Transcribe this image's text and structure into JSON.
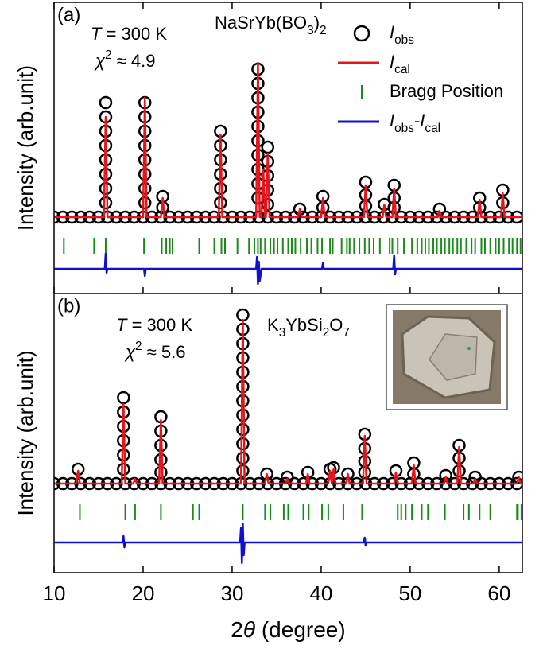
{
  "chart_data": [
    {
      "type": "rietveld",
      "panel_label": "(a)",
      "ylabel": "Intensity (arb.unit)",
      "temperature": [
        {
          "text": "T",
          "style": "italic"
        },
        {
          "text": " = 300 K"
        }
      ],
      "chi2": [
        {
          "text": "χ",
          "style": "italic"
        },
        {
          "text": "2",
          "style": "sup"
        },
        {
          "text": " ≈ 4.9"
        }
      ],
      "compound": [
        {
          "text": "NaSrYb(BO"
        },
        {
          "text": "3",
          "style": "sub"
        },
        {
          "text": ")"
        },
        {
          "text": "2",
          "style": "sub"
        }
      ],
      "xlim": [
        10,
        62.6
      ],
      "ylim": [
        -48,
        135
      ],
      "series": [
        {
          "kind": "circle",
          "color": "#000000",
          "label": [
            {
              "text": "I",
              "style": "italic"
            },
            {
              "text": "obs",
              "style": "sub"
            }
          ],
          "x": [
            10,
            11,
            12,
            13,
            14,
            15,
            16,
            17,
            18,
            19,
            20,
            21,
            22,
            23,
            24,
            25,
            26,
            27,
            28,
            29,
            30,
            31,
            32,
            33,
            34,
            35,
            36,
            37,
            38,
            39,
            40,
            41,
            42,
            43,
            44,
            45,
            46,
            47,
            48,
            49,
            50,
            51,
            52,
            53,
            54,
            55,
            56,
            57,
            58,
            59,
            60,
            61,
            62,
            15.8,
            15.8,
            15.8,
            15.8,
            15.8,
            15.8,
            15.8,
            15.8,
            20.2,
            20.2,
            20.2,
            20.2,
            20.2,
            20.2,
            20.2,
            20.2,
            22.2,
            22.2,
            28.7,
            28.7,
            28.7,
            28.7,
            28.7,
            28.7,
            32.9,
            32.9,
            32.9,
            32.9,
            32.9,
            32.9,
            32.9,
            32.9,
            32.9,
            32.9,
            34.0,
            34.0,
            34.0,
            34.0,
            34.0,
            37.6,
            40.2,
            40.2,
            45.0,
            45.0,
            45.0,
            47.1,
            48.2,
            48.2,
            48.2,
            53.3,
            57.8,
            57.8,
            60.4,
            60.4
          ],
          "values": [
            0,
            0,
            0,
            0,
            0,
            0,
            0,
            0,
            0,
            0,
            0,
            0,
            0,
            0,
            0,
            0,
            0,
            0,
            0,
            0,
            0,
            0,
            0,
            0,
            0,
            0,
            0,
            0,
            0,
            0,
            0,
            0,
            0,
            0,
            0,
            0,
            0,
            0,
            0,
            0,
            0,
            0,
            0,
            0,
            0,
            0,
            0,
            0,
            0,
            0,
            0,
            0,
            0,
            72,
            63,
            54,
            45,
            36,
            27,
            18,
            9,
            72,
            63,
            54,
            45,
            36,
            27,
            18,
            9,
            13,
            6,
            54,
            45,
            36,
            27,
            18,
            9,
            93,
            84,
            75,
            66,
            57,
            48,
            39,
            30,
            21,
            12,
            44,
            35,
            26,
            17,
            8,
            5,
            13,
            6,
            22,
            14,
            7,
            8,
            20,
            12,
            6,
            5,
            12,
            6,
            17,
            9
          ]
        },
        {
          "kind": "line",
          "color": "#e8141b",
          "label": [
            {
              "text": "I",
              "style": "italic"
            },
            {
              "text": "cal",
              "style": "sub"
            }
          ],
          "x": [
            10,
            15.6,
            15.8,
            16.0,
            20.0,
            20.2,
            20.4,
            22.0,
            22.2,
            22.4,
            28.5,
            28.7,
            28.9,
            32.7,
            32.9,
            33.1,
            33.3,
            33.5,
            33.7,
            33.8,
            34.0,
            34.2,
            37.4,
            37.6,
            37.8,
            40.0,
            40.2,
            40.4,
            44.8,
            45.0,
            45.2,
            46.9,
            47.1,
            47.3,
            48.0,
            48.2,
            48.4,
            53.1,
            53.3,
            53.5,
            57.6,
            57.8,
            58.0,
            60.2,
            60.4,
            60.6,
            62.6
          ],
          "values": [
            0,
            0,
            63,
            0,
            0,
            75,
            0,
            0,
            12,
            0,
            0,
            52,
            0,
            0,
            97,
            0,
            0,
            30,
            0,
            0,
            40,
            0,
            0,
            5,
            0,
            0,
            12,
            0,
            0,
            20,
            0,
            0,
            8,
            0,
            0,
            18,
            0,
            0,
            4,
            0,
            0,
            11,
            0,
            0,
            15,
            0,
            0
          ]
        },
        {
          "kind": "tick",
          "color": "#1a8a1a",
          "label": [
            {
              "text": "Bragg Position"
            }
          ],
          "x": [
            11.1,
            14.5,
            15.8,
            20.1,
            22.1,
            22.6,
            23.0,
            23.3,
            26.3,
            28.0,
            28.8,
            29.2,
            30.6,
            31.9,
            32.5,
            32.9,
            33.2,
            33.7,
            34.3,
            34.7,
            35.1,
            35.7,
            36.3,
            36.7,
            37.1,
            37.7,
            38.4,
            38.9,
            39.6,
            40.1,
            41.0,
            41.3,
            42.3,
            42.9,
            43.2,
            43.7,
            44.3,
            44.9,
            45.4,
            45.9,
            46.6,
            47.7,
            48.0,
            48.6,
            49.3,
            50.2,
            50.8,
            51.3,
            51.7,
            52.1,
            52.6,
            53.0,
            53.5,
            53.9,
            54.4,
            54.8,
            55.3,
            55.7,
            56.3,
            56.9,
            57.3,
            58.0,
            58.4,
            59.0,
            59.6,
            60.0,
            60.5,
            61.1,
            61.5,
            62.0,
            62.4
          ]
        },
        {
          "kind": "line",
          "color": "#1010d0",
          "label": [
            {
              "text": "I",
              "style": "italic"
            },
            {
              "text": "obs",
              "style": "sub"
            },
            {
              "text": "-"
            },
            {
              "text": "I",
              "style": "italic"
            },
            {
              "text": "cal",
              "style": "sub"
            }
          ],
          "x": [
            10,
            15.7,
            15.8,
            15.9,
            16.0,
            20.1,
            20.2,
            20.3,
            32.7,
            32.8,
            32.9,
            33.0,
            33.1,
            33.3,
            40.1,
            40.2,
            40.3,
            48.1,
            48.2,
            48.3,
            48.4,
            62.6
          ],
          "values": [
            -32.5,
            -32.5,
            -23,
            -35,
            -32.5,
            -32.5,
            -37,
            -32.5,
            -32.5,
            -25,
            -42,
            -28,
            -40,
            -32.5,
            -32.5,
            -29,
            -32.5,
            -32.5,
            -24,
            -36,
            -32.5,
            -32.5
          ]
        }
      ]
    },
    {
      "type": "rietveld",
      "panel_label": "(b)",
      "ylabel": "Intensity (arb.unit)",
      "temperature": [
        {
          "text": "T",
          "style": "italic"
        },
        {
          "text": " = 300 K"
        }
      ],
      "chi2": [
        {
          "text": "χ",
          "style": "italic"
        },
        {
          "text": "2",
          "style": "sup"
        },
        {
          "text": " ≈ 5.6"
        }
      ],
      "compound": [
        {
          "text": "K"
        },
        {
          "text": "3",
          "style": "sub"
        },
        {
          "text": "YbSi"
        },
        {
          "text": "2",
          "style": "sub"
        },
        {
          "text": "O"
        },
        {
          "text": "7",
          "style": "sub"
        }
      ],
      "xlabel": [
        {
          "text": "2"
        },
        {
          "text": "θ",
          "style": "italic"
        },
        {
          "text": " (degree)"
        }
      ],
      "xlim": [
        10,
        62.6
      ],
      "ylim": [
        -56,
        119.5
      ],
      "xticks": [
        10,
        20,
        30,
        40,
        50,
        60
      ],
      "series": [
        {
          "kind": "circle",
          "color": "#000000",
          "x": [
            10,
            11,
            12,
            13,
            14,
            15,
            16,
            17,
            18,
            19,
            20,
            21,
            22,
            23,
            24,
            25,
            26,
            27,
            28,
            29,
            30,
            31,
            32,
            33,
            34,
            35,
            36,
            37,
            38,
            39,
            40,
            41,
            42,
            43,
            44,
            45,
            46,
            47,
            48,
            49,
            50,
            51,
            52,
            53,
            54,
            55,
            56,
            57,
            58,
            59,
            60,
            61,
            62,
            12.7,
            17.8,
            17.8,
            17.8,
            17.8,
            17.8,
            17.8,
            22.0,
            22.0,
            22.0,
            22.0,
            22.0,
            31.2,
            31.2,
            31.2,
            31.2,
            31.2,
            31.2,
            31.2,
            31.2,
            31.2,
            31.2,
            31.2,
            31.2,
            33.9,
            36.2,
            38.5,
            41.0,
            41.4,
            43.0,
            44.9,
            44.9,
            44.9,
            44.9,
            48.4,
            50.4,
            50.4,
            54.0,
            55.5,
            55.5,
            55.5,
            57.3,
            62.2
          ],
          "values": [
            0,
            0,
            0,
            0,
            0,
            0,
            0,
            0,
            0,
            0,
            0,
            0,
            0,
            0,
            0,
            0,
            0,
            0,
            0,
            0,
            0,
            0,
            0,
            0,
            0,
            0,
            0,
            0,
            0,
            0,
            0,
            0,
            0,
            0,
            0,
            0,
            0,
            0,
            0,
            0,
            0,
            0,
            0,
            0,
            0,
            0,
            0,
            0,
            0,
            0,
            0,
            0,
            0,
            9,
            54,
            45,
            36,
            27,
            18,
            9,
            42,
            33,
            24,
            15,
            7,
            106,
            97,
            88,
            79,
            70,
            61,
            52,
            43,
            34,
            25,
            16,
            8,
            6,
            4,
            7,
            9,
            10,
            6,
            31,
            22,
            14,
            7,
            8,
            13,
            6,
            5,
            24,
            16,
            8,
            4,
            4
          ]
        },
        {
          "kind": "line",
          "color": "#e8141b",
          "x": [
            10,
            12.5,
            12.7,
            12.9,
            17.6,
            17.8,
            18.0,
            18.9,
            19.1,
            19.3,
            21.8,
            22.0,
            22.2,
            31.0,
            31.2,
            31.4,
            33.7,
            33.9,
            34.1,
            36.0,
            36.2,
            36.4,
            38.3,
            38.5,
            38.7,
            40.8,
            41.0,
            41.2,
            41.4,
            41.6,
            42.8,
            43.0,
            43.2,
            44.7,
            44.9,
            45.1,
            48.2,
            48.4,
            48.6,
            50.2,
            50.4,
            50.6,
            53.8,
            54.0,
            54.2,
            55.3,
            55.5,
            55.7,
            57.1,
            57.3,
            57.5,
            62.0,
            62.2,
            62.4,
            62.6
          ],
          "values": [
            0,
            0,
            8,
            0,
            0,
            50,
            0,
            0,
            3,
            0,
            0,
            40,
            0,
            0,
            103,
            0,
            0,
            6,
            0,
            0,
            3,
            0,
            0,
            6,
            0,
            0,
            8,
            0,
            9,
            0,
            0,
            6,
            0,
            0,
            30,
            0,
            0,
            7,
            0,
            0,
            12,
            0,
            0,
            4,
            0,
            0,
            23,
            0,
            0,
            3,
            0,
            0,
            4,
            0,
            0
          ]
        },
        {
          "kind": "tick",
          "color": "#1a8a1a",
          "x": [
            12.9,
            18.0,
            19.1,
            22.0,
            25.6,
            26.3,
            31.2,
            33.7,
            34.3,
            35.8,
            36.3,
            38.0,
            38.6,
            40.1,
            40.8,
            42.5,
            44.6,
            48.6,
            49.0,
            49.5,
            50.2,
            51.3,
            52.0,
            53.9,
            56.0,
            56.6,
            57.8,
            59.0,
            62.0,
            62.1,
            62.5
          ]
        },
        {
          "kind": "line",
          "color": "#1010d0",
          "x": [
            10,
            17.7,
            17.8,
            17.9,
            18.0,
            30.9,
            31.0,
            31.1,
            31.2,
            31.3,
            31.4,
            44.8,
            44.9,
            45.0,
            45.1,
            62.6
          ],
          "values": [
            -37,
            -37,
            -33,
            -40,
            -37,
            -37,
            -28,
            -50,
            -25,
            -45,
            -37,
            -37,
            -34,
            -39,
            -37,
            -37
          ]
        }
      ]
    }
  ]
}
